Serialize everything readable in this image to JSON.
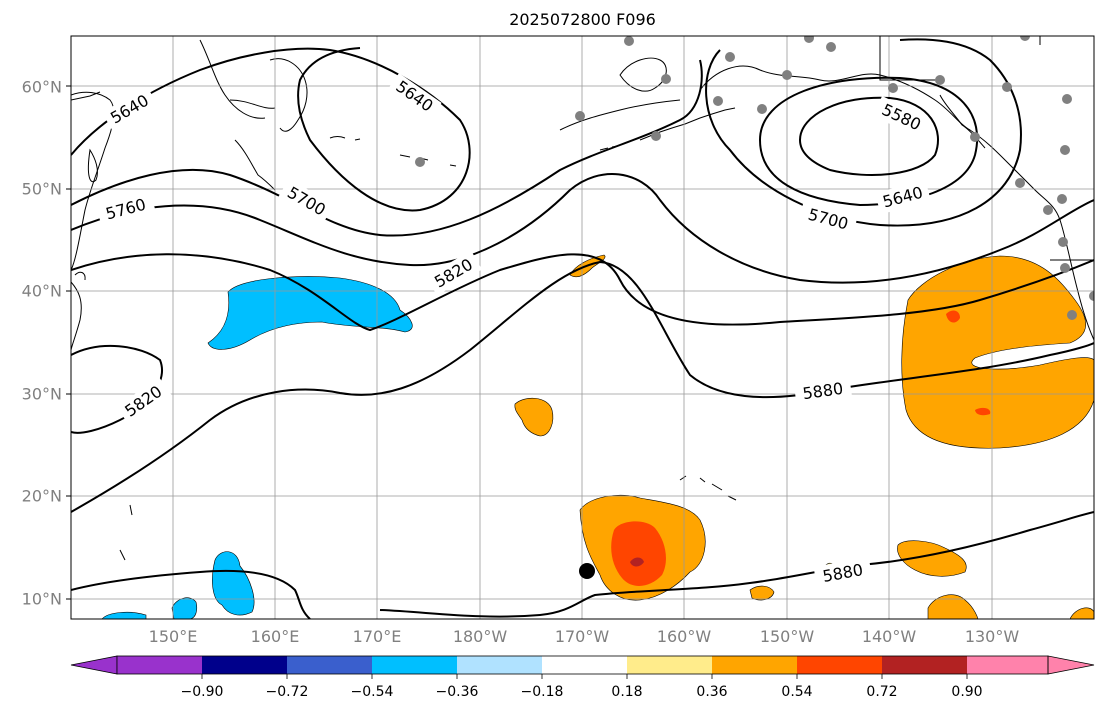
{
  "title": "2025072800 F096",
  "map": {
    "lat_ticks": [
      "60°N",
      "50°N",
      "40°N",
      "30°N",
      "20°N",
      "10°N"
    ],
    "lon_ticks": [
      "150°E",
      "160°E",
      "170°E",
      "180°W",
      "170°W",
      "160°W",
      "150°W",
      "140°W",
      "130°W"
    ],
    "contour_labels": [
      "5640",
      "5640",
      "5580",
      "5640",
      "5760",
      "5700",
      "5700",
      "5820",
      "5820",
      "5880",
      "5880"
    ],
    "colorbar": {
      "ticks": [
        "−0.90",
        "−0.72",
        "−0.54",
        "−0.36",
        "−0.18",
        "0.18",
        "0.36",
        "0.54",
        "0.72",
        "0.90"
      ],
      "colors": [
        "#9932CC",
        "#00008B",
        "#3A5FCD",
        "#00BFFF",
        "#B0E2FF",
        "#FFFFFF",
        "#FFEC8B",
        "#FFA500",
        "#FF4500",
        "#B22222",
        "#FF82AB"
      ]
    },
    "colors": {
      "negative_fill": "#00BFFF",
      "positive_fill": "#FFA500",
      "strong_positive_fill": "#FF4500",
      "station_dot": "#808080"
    }
  }
}
